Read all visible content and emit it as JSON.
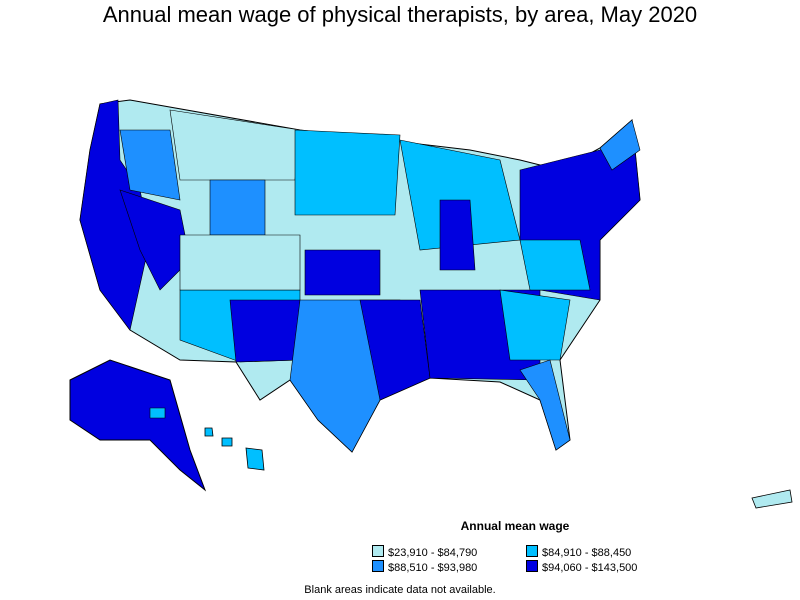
{
  "title": "Annual mean wage of physical therapists, by area, May 2020",
  "legend": {
    "title": "Annual mean wage",
    "items": [
      {
        "label": "$23,910 - $84,790",
        "color": "#b0eaf0"
      },
      {
        "label": "$84,910 - $88,450",
        "color": "#00bfff"
      },
      {
        "label": "$88,510 - $93,980",
        "color": "#1e90ff"
      },
      {
        "label": "$94,060 - $143,500",
        "color": "#0000e0"
      }
    ]
  },
  "note": "Blank areas indicate data not available."
}
